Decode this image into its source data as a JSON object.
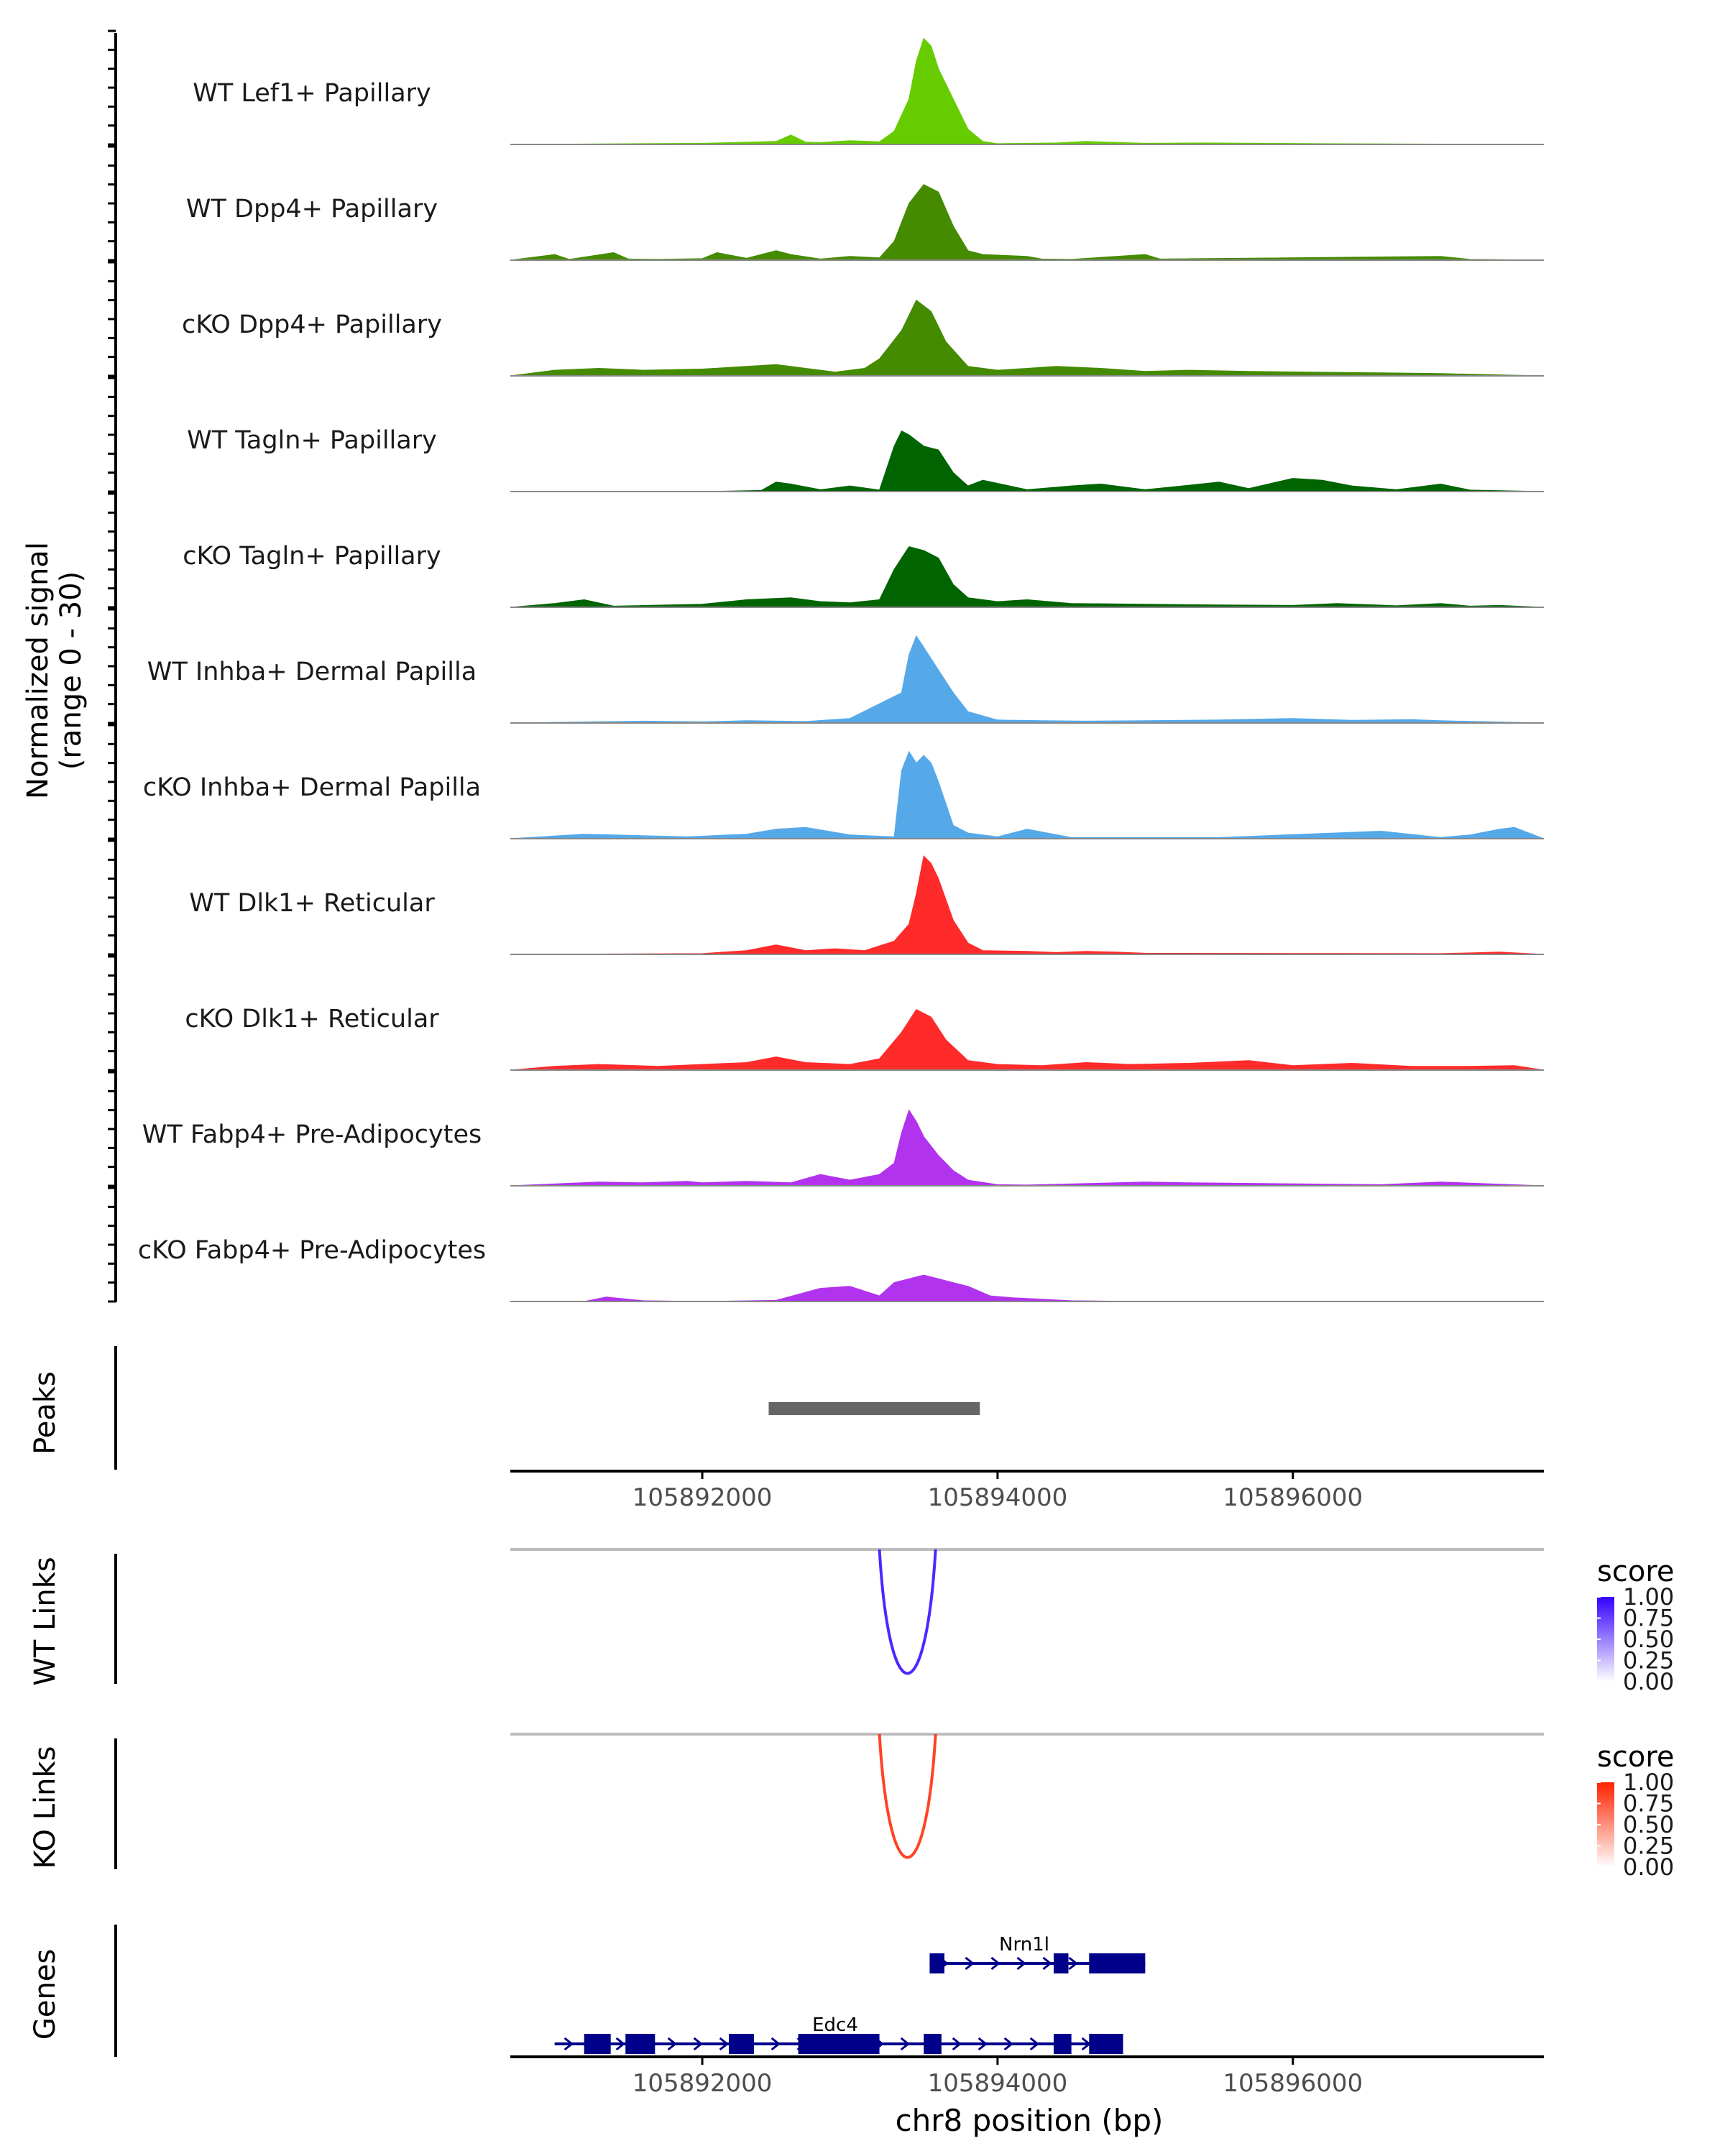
{
  "chart_data": {
    "type": "area",
    "title": "",
    "xlabel": "chr8 position (bp)",
    "ylabel_line1": "Normalized signal",
    "ylabel_line2": "(range 0 - 30)",
    "ylim": [
      0,
      30
    ],
    "xlim": [
      105890700,
      105897700
    ],
    "xticks": [
      105892000,
      105894000,
      105896000
    ],
    "xtick_labels": [
      "105892000",
      "105894000",
      "105896000"
    ],
    "coverage_tracks": [
      {
        "name": "WT Lef1+ Papillary",
        "color": "#66CC00",
        "x": [
          105890700,
          105892000,
          105892200,
          105892500,
          105892600,
          105892700,
          105892800,
          105893000,
          105893200,
          105893300,
          105893400,
          105893450,
          105893500,
          105893550,
          105893600,
          105893700,
          105893800,
          105893900,
          105894000,
          105894200,
          105894400,
          105894600,
          105895000,
          105895400,
          105895800,
          105896200,
          105897000,
          105897700
        ],
        "y": [
          0,
          0.3,
          0.5,
          0.8,
          2.5,
          0.6,
          0.5,
          1.0,
          0.7,
          3.5,
          12.0,
          22.0,
          28.0,
          26.0,
          20.0,
          12.0,
          4.0,
          0.8,
          0.2,
          0.3,
          0.4,
          0.8,
          0.3,
          0.4,
          0.3,
          0.2,
          0.1,
          0
        ]
      },
      {
        "name": "WT Dpp4+ Papillary",
        "color": "#458B00",
        "x": [
          105890700,
          105891000,
          105891100,
          105891400,
          105891500,
          105891700,
          105892000,
          105892100,
          105892300,
          105892500,
          105892600,
          105892800,
          105893000,
          105893200,
          105893300,
          105893400,
          105893500,
          105893600,
          105893700,
          105893800,
          105893900,
          105894200,
          105894300,
          105894500,
          105895000,
          105895100,
          105897000,
          105897200,
          105897700
        ],
        "y": [
          0,
          1.5,
          0.2,
          2.0,
          0.3,
          0.2,
          0.4,
          2.0,
          0.5,
          2.5,
          1.5,
          0.3,
          1.0,
          0.6,
          5.0,
          15.0,
          20.0,
          18.0,
          9.0,
          2.5,
          1.5,
          1.0,
          0.3,
          0.2,
          1.5,
          0.3,
          1.0,
          0.2,
          0
        ]
      },
      {
        "name": "cKO Dpp4+ Papillary",
        "color": "#458B00",
        "x": [
          105890700,
          105891000,
          105891300,
          105891600,
          105892000,
          105892300,
          105892500,
          105892700,
          105892900,
          105893100,
          105893200,
          105893350,
          105893450,
          105893550,
          105893650,
          105893800,
          105894000,
          105894200,
          105894400,
          105894700,
          105895000,
          105895300,
          105895700,
          105896100,
          105896600,
          105897000,
          105897700
        ],
        "y": [
          0,
          1.5,
          2.0,
          1.5,
          1.8,
          2.5,
          3.0,
          2.0,
          1.0,
          2.0,
          4.5,
          12.0,
          20.0,
          17.0,
          9.0,
          2.5,
          1.5,
          2.0,
          2.5,
          2.0,
          1.2,
          1.5,
          1.2,
          1.0,
          0.8,
          0.6,
          0
        ]
      },
      {
        "name": "WT Tagln+ Papillary",
        "color": "#006400",
        "x": [
          105890700,
          105892000,
          105892400,
          105892500,
          105892600,
          105892800,
          105893000,
          105893200,
          105893300,
          105893350,
          105893400,
          105893500,
          105893600,
          105893700,
          105893800,
          105893900,
          105894200,
          105894500,
          105894700,
          105895000,
          105895500,
          105895700,
          105896000,
          105896200,
          105896400,
          105896700,
          105897000,
          105897200,
          105897700
        ],
        "y": [
          0,
          0,
          0.3,
          2.5,
          2.0,
          0.5,
          1.5,
          0.4,
          12.0,
          16.0,
          15.0,
          12.0,
          11.0,
          5.0,
          1.5,
          3.0,
          0.5,
          1.5,
          2.0,
          0.5,
          2.5,
          0.8,
          3.5,
          3.0,
          1.5,
          0.5,
          2.0,
          0.4,
          0
        ]
      },
      {
        "name": "cKO Tagln+ Papillary",
        "color": "#006400",
        "x": [
          105890700,
          105891000,
          105891200,
          105891400,
          105892000,
          105892300,
          105892600,
          105892800,
          105893000,
          105893200,
          105893300,
          105893400,
          105893500,
          105893600,
          105893700,
          105893800,
          105894000,
          105894200,
          105894500,
          105895000,
          105895500,
          105896000,
          105896300,
          105896700,
          105897000,
          105897200,
          105897400,
          105897700
        ],
        "y": [
          0,
          1.0,
          2.0,
          0.3,
          0.8,
          2.0,
          2.5,
          1.5,
          1.2,
          2.0,
          10.0,
          16.0,
          15.0,
          13.0,
          6.0,
          2.5,
          1.5,
          2.0,
          1.0,
          0.8,
          0.6,
          0.5,
          1.0,
          0.4,
          1.0,
          0.3,
          0.5,
          0
        ]
      },
      {
        "name": "WT Inhba+ Dermal Papilla",
        "color": "#56A9E9",
        "x": [
          105890700,
          105891600,
          105892000,
          105892300,
          105892700,
          105893000,
          105893350,
          105893400,
          105893450,
          105893500,
          105893550,
          105893600,
          105893700,
          105893800,
          105894000,
          105894300,
          105894600,
          105895000,
          105895500,
          105896000,
          105896400,
          105896800,
          105897000,
          105897700
        ],
        "y": [
          0,
          0.5,
          0.3,
          0.6,
          0.4,
          1.2,
          8.0,
          18.0,
          23.0,
          20.0,
          17.0,
          14.0,
          8.0,
          3.0,
          0.8,
          0.6,
          0.5,
          0.6,
          0.8,
          1.2,
          0.7,
          0.9,
          0.6,
          0
        ]
      },
      {
        "name": "cKO Inhba+ Dermal Papilla",
        "color": "#56A9E9",
        "x": [
          105890700,
          105891200,
          105891400,
          105891900,
          105892300,
          105892500,
          105892700,
          105893000,
          105893300,
          105893350,
          105893400,
          105893450,
          105893500,
          105893550,
          105893600,
          105893700,
          105893800,
          105894000,
          105894200,
          105894500,
          105895500,
          105896600,
          105897000,
          105897200,
          105897400,
          105897500,
          105897700
        ],
        "y": [
          0,
          1.2,
          1.0,
          0.5,
          1.2,
          2.5,
          3.0,
          1.0,
          0.5,
          18.0,
          23.0,
          20.0,
          22.0,
          20.0,
          15.0,
          3.5,
          1.5,
          0.5,
          2.5,
          0.3,
          0.3,
          2.0,
          0.3,
          1.0,
          2.5,
          3.0,
          0
        ]
      },
      {
        "name": "WT Dlk1+ Reticular",
        "color": "#FF2A2A",
        "x": [
          105890700,
          105892000,
          105892300,
          105892500,
          105892700,
          105892900,
          105893100,
          105893300,
          105893400,
          105893450,
          105893500,
          105893550,
          105893600,
          105893700,
          105893800,
          105893900,
          105894200,
          105894400,
          105894600,
          105894800,
          105895000,
          105897000,
          105897400,
          105897700
        ],
        "y": [
          0,
          0.2,
          1.0,
          2.5,
          1.0,
          1.5,
          1.0,
          3.5,
          8.0,
          16.0,
          26.0,
          24.0,
          20.0,
          9.0,
          3.0,
          1.0,
          0.8,
          0.5,
          0.8,
          0.6,
          0.3,
          0.2,
          0.6,
          0
        ]
      },
      {
        "name": "cKO Dlk1+ Reticular",
        "color": "#FF2A2A",
        "x": [
          105890700,
          105891000,
          105891300,
          105891700,
          105892000,
          105892300,
          105892500,
          105892700,
          105893000,
          105893200,
          105893350,
          105893450,
          105893550,
          105893650,
          105893800,
          105894000,
          105894300,
          105894600,
          105894900,
          105895300,
          105895700,
          105896000,
          105896400,
          105896800,
          105897200,
          105897500,
          105897700
        ],
        "y": [
          0,
          1.0,
          1.5,
          1.0,
          1.5,
          2.0,
          3.5,
          2.0,
          1.5,
          3.0,
          10.0,
          16.0,
          14.0,
          8.0,
          2.5,
          1.5,
          1.2,
          2.0,
          1.5,
          1.8,
          2.5,
          1.2,
          1.8,
          1.0,
          1.0,
          1.2,
          0
        ]
      },
      {
        "name": "WT Fabp4+ Pre-Adipocytes",
        "color": "#B233EE",
        "x": [
          105890700,
          105891300,
          105891600,
          105891900,
          105892000,
          105892300,
          105892600,
          105892800,
          105893000,
          105893200,
          105893300,
          105893350,
          105893400,
          105893450,
          105893500,
          105893600,
          105893700,
          105893800,
          105894000,
          105894200,
          105895000,
          105895300,
          105896600,
          105897000,
          105897700
        ],
        "y": [
          0,
          1.0,
          0.8,
          1.2,
          0.8,
          1.2,
          0.8,
          3.0,
          1.5,
          3.0,
          6.0,
          14.0,
          20.0,
          17.0,
          13.0,
          8.0,
          4.0,
          1.5,
          0.3,
          0.2,
          1.0,
          0.8,
          0.3,
          1.0,
          0
        ]
      },
      {
        "name": "cKO Fabp4+ Pre-Adipocytes",
        "color": "#B233EE",
        "x": [
          105890700,
          105891200,
          105891350,
          105891600,
          105892000,
          105892500,
          105892800,
          105893000,
          105893200,
          105893300,
          105893400,
          105893500,
          105893600,
          105893700,
          105893800,
          105893950,
          105894100,
          105894500,
          105895000,
          105896000,
          105897000,
          105897700
        ],
        "y": [
          0,
          0,
          1.2,
          0.2,
          0,
          0.3,
          3.5,
          4.0,
          1.5,
          5.0,
          6.0,
          7.0,
          6.0,
          5.0,
          4.0,
          1.5,
          1.0,
          0.2,
          0,
          0,
          0,
          0
        ]
      }
    ],
    "peaks": {
      "label": "Peaks",
      "color": "#666666",
      "regions": [
        {
          "start": 105892450,
          "end": 105893880
        }
      ]
    },
    "links": [
      {
        "label": "WT Links",
        "start": 105893200,
        "end": 105893580,
        "score": 1.0,
        "legend_title": "score",
        "legend_ticks": [
          "1.00",
          "0.75",
          "0.50",
          "0.25",
          "0.00"
        ],
        "color_low": "#FFFFFF",
        "color_high": "#3300FF"
      },
      {
        "label": "KO Links",
        "start": 105893200,
        "end": 105893580,
        "score": 1.0,
        "legend_title": "score",
        "legend_ticks": [
          "1.00",
          "0.75",
          "0.50",
          "0.25",
          "0.00"
        ],
        "color_low": "#FFFFFF",
        "color_high": "#FF2200"
      }
    ],
    "genes": {
      "label": "Genes",
      "color": "#00008B",
      "items": [
        {
          "name": "Nrn1l",
          "row": 0,
          "start": 105893540,
          "end": 105895000,
          "exons": [
            [
              105893540,
              105893640
            ],
            [
              105894380,
              105894480
            ],
            [
              105894620,
              105895000
            ]
          ]
        },
        {
          "name": "Edc4",
          "row": 1,
          "start": 105891000,
          "end": 105894850,
          "exons": [
            [
              105891200,
              105891380
            ],
            [
              105891480,
              105891680
            ],
            [
              105892180,
              105892350
            ],
            [
              105892650,
              105893200
            ],
            [
              105893500,
              105893620
            ],
            [
              105894380,
              105894500
            ],
            [
              105894620,
              105894850
            ]
          ]
        }
      ]
    }
  }
}
